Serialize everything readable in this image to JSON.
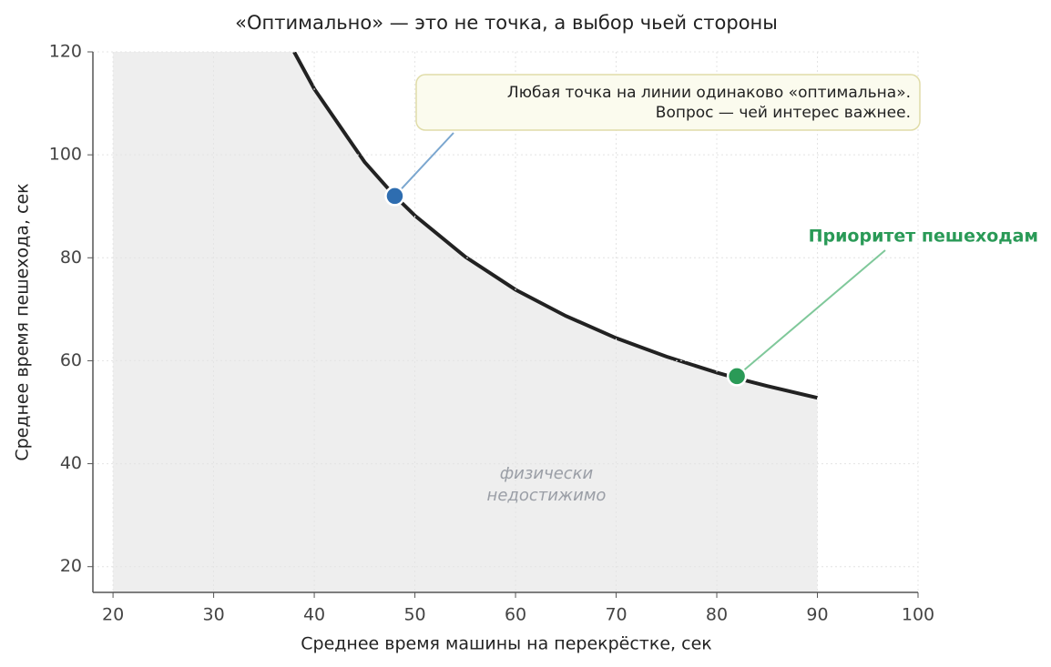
{
  "chart_data": {
    "type": "line",
    "title": "«Оптимально» — это не точка, а выбор чьей стороны",
    "x_label": "Среднее время машины на перекрёстке, сек",
    "y_label": "Среднее время пешехода, сек",
    "xlim": [
      18,
      100
    ],
    "ylim": [
      15,
      120
    ],
    "xticks": [
      20,
      30,
      40,
      50,
      60,
      70,
      80,
      90,
      100
    ],
    "yticks": [
      20,
      40,
      60,
      80,
      100,
      120
    ],
    "grid": true,
    "x": [
      38,
      40,
      45,
      48,
      50,
      55,
      60,
      65,
      70,
      75,
      80,
      82,
      85,
      90
    ],
    "series": [
      {
        "color": "#222222",
        "values": [
          120.0,
          112.8,
          98.6,
          92.0,
          88.2,
          80.2,
          73.8,
          68.7,
          64.4,
          60.8,
          57.7,
          56.6,
          55.1,
          52.8
        ]
      }
    ],
    "shade": {
      "x_start": 20,
      "color": "#eeeeee",
      "label": [
        "физически",
        "недостижимо"
      ]
    },
    "points": [
      {
        "x": 48,
        "y": 92,
        "color": "#2e6db0",
        "annotation": [
          "Любая точка на линии одинаково «оптимальна».",
          "Вопрос — чей интерес важнее."
        ]
      },
      {
        "x": 82,
        "y": 57,
        "color": "#2a9a57",
        "annotation": [
          "Приоритет пешеходам"
        ]
      }
    ]
  }
}
